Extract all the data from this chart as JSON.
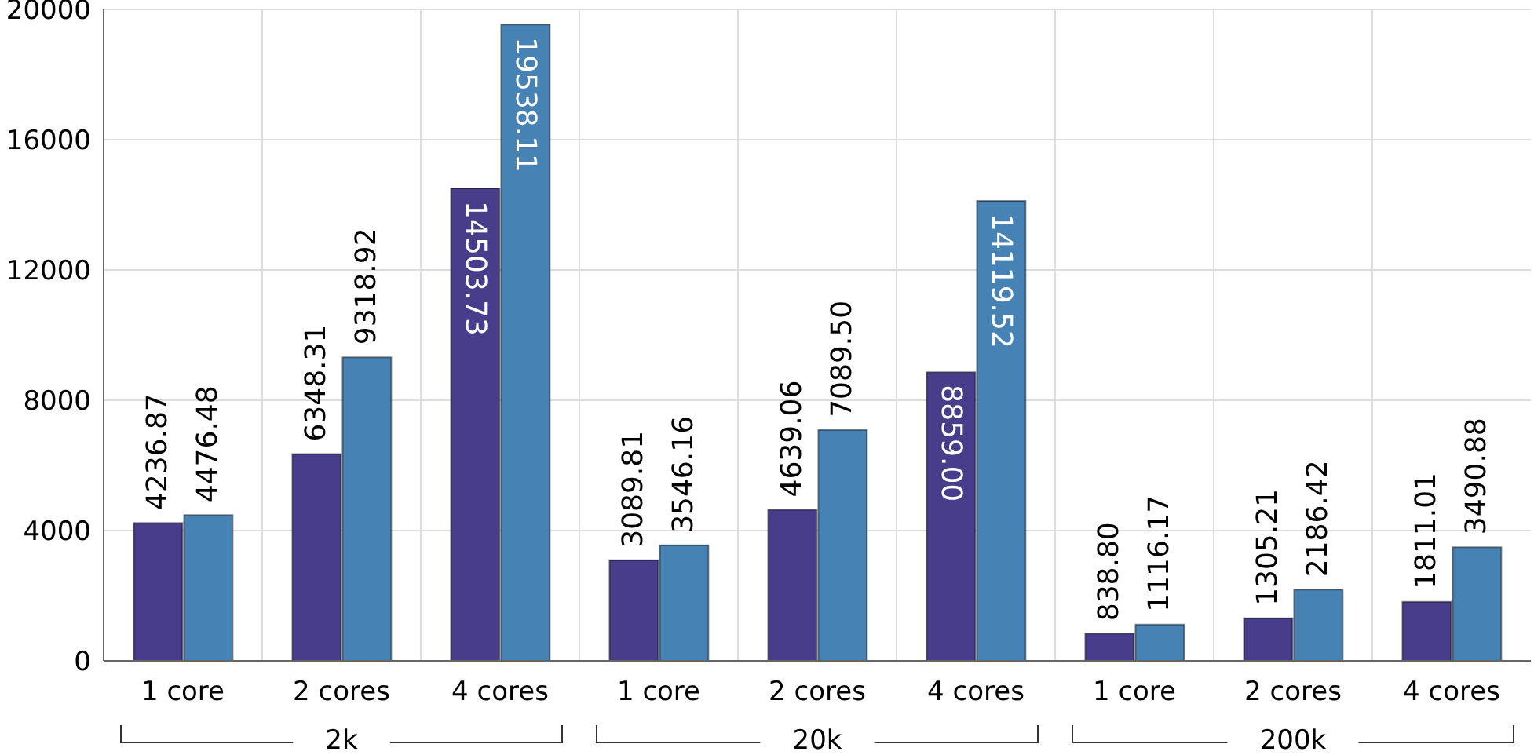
{
  "chart_data": {
    "type": "bar",
    "categories": [
      "1 core",
      "2 cores",
      "4 cores",
      "1 core",
      "2 cores",
      "4 cores",
      "1 core",
      "2 cores",
      "4 cores"
    ],
    "series": [
      {
        "color": "#483d8b",
        "values": [
          4236.87,
          6348.31,
          14503.73,
          3089.81,
          4639.06,
          8859.0,
          838.8,
          1305.21,
          1811.01
        ],
        "value_labels": [
          "4236.87",
          "6348.31",
          "14503.73",
          "3089.81",
          "4639.06",
          "8859.00",
          "838.80",
          "1305.21",
          "1811.01"
        ]
      },
      {
        "color": "#4682b4",
        "values": [
          4476.48,
          9318.92,
          19538.11,
          3546.16,
          7089.5,
          14119.52,
          1116.17,
          2186.42,
          3490.88
        ],
        "value_labels": [
          "4476.48",
          "9318.92",
          "19538.11",
          "3546.16",
          "7089.50",
          "14119.52",
          "1116.17",
          "2186.42",
          "3490.88"
        ]
      }
    ],
    "ylim": [
      0,
      20000
    ],
    "yticks": [
      0,
      4000,
      8000,
      12000,
      16000,
      20000
    ],
    "grid": true,
    "annotations": [
      "2k",
      "20k",
      "200k"
    ]
  }
}
